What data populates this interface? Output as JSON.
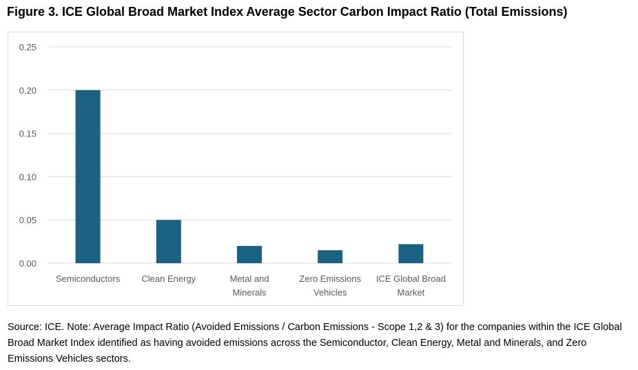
{
  "figure": {
    "title": "Figure 3. ICE Global Broad Market Index Average Sector Carbon Impact Ratio (Total Emissions)",
    "source_note": "Source: ICE. Note: Average Impact Ratio (Avoided Emissions / Carbon Emissions - Scope 1,2 & 3) for the companies within the ICE Global Broad Market Index identified as having avoided emissions across the Semiconductor, Clean Energy, Metal and Minerals, and Zero Emissions Vehicles sectors."
  },
  "colors": {
    "bar": "#1b6181",
    "grid": "#d9d9d9",
    "tick_text": "#595959"
  },
  "chart_data": {
    "type": "bar",
    "title": "",
    "xlabel": "",
    "ylabel": "",
    "categories": [
      "Semiconductors",
      "Clean Energy",
      "Metal and Minerals",
      "Zero Emissions Vehicles",
      "ICE Global Broad Market"
    ],
    "category_lines": [
      [
        "Semiconductors"
      ],
      [
        "Clean Energy"
      ],
      [
        "Metal and",
        "Minerals"
      ],
      [
        "Zero Emissions",
        "Vehicles"
      ],
      [
        "ICE Global Broad",
        "Market"
      ]
    ],
    "values": [
      0.2,
      0.05,
      0.02,
      0.015,
      0.022
    ],
    "ylim": [
      0,
      0.25
    ],
    "yticks": [
      "0.00",
      "0.05",
      "0.10",
      "0.15",
      "0.20",
      "0.25"
    ],
    "ytick_values": [
      0,
      0.05,
      0.1,
      0.15,
      0.2,
      0.25
    ],
    "grid": true,
    "legend": "none"
  }
}
